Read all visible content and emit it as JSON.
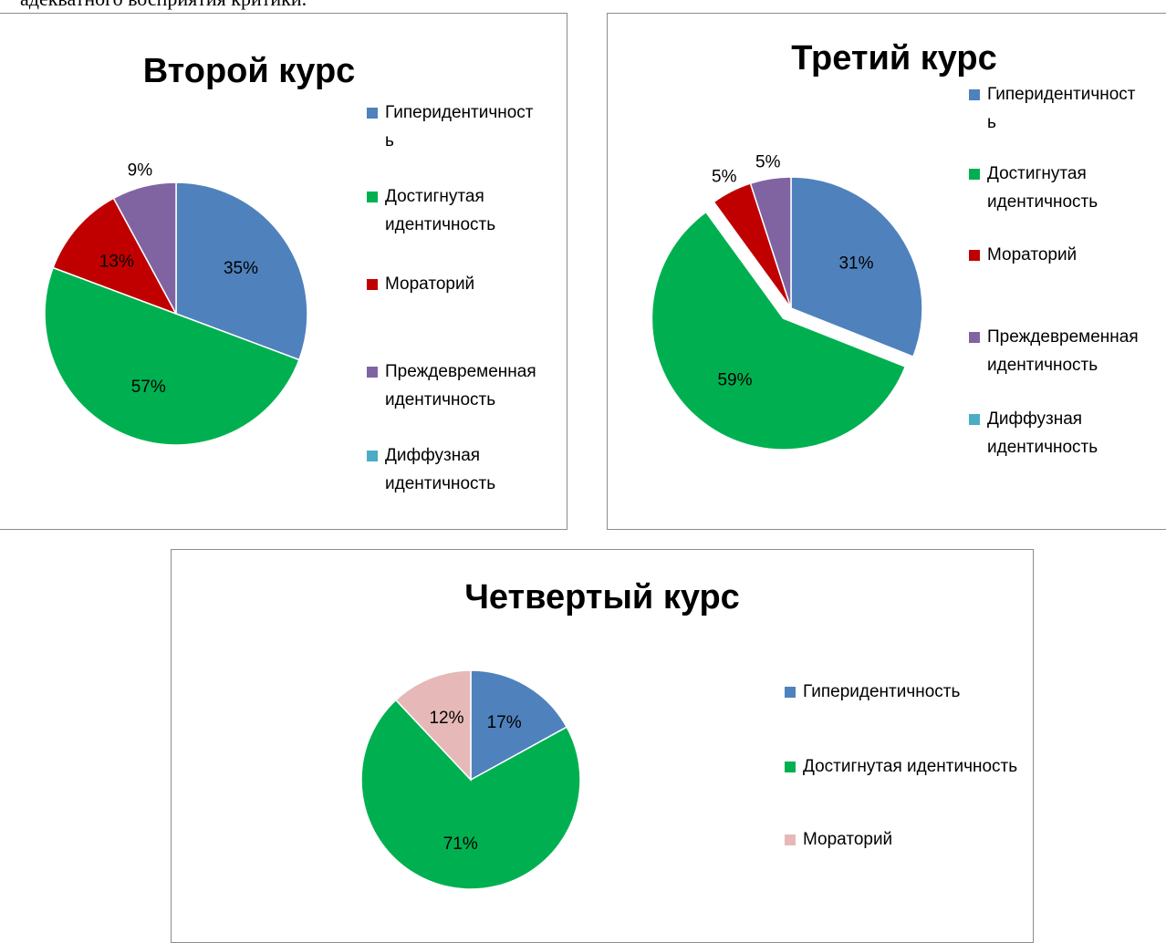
{
  "text_fragment": "адекватного восприятия критики.",
  "chart_data": [
    {
      "type": "pie",
      "title": "Второй курс",
      "categories": [
        "Гиперидентичность",
        "Достигнутая идентичность",
        "Мораторий",
        "Преждевременная идентичность",
        "Диффузная идентичность"
      ],
      "values": [
        35,
        57,
        13,
        9,
        null
      ],
      "value_labels": [
        "35%",
        "57%",
        "13%",
        "9%",
        null
      ],
      "colors": [
        "#4f81bd",
        "#00b050",
        "#c00000",
        "#8064a2",
        "#4bacc6"
      ],
      "legend": "right"
    },
    {
      "type": "pie",
      "title": "Третий курс",
      "categories": [
        "Гиперидентичность",
        "Достигнутая идентичность",
        "Мораторий",
        "Преждевременная идентичность",
        "Диффузная идентичность"
      ],
      "values": [
        31,
        59,
        5,
        5,
        null
      ],
      "value_labels": [
        "31%",
        "59%",
        "5%",
        "5%",
        null
      ],
      "colors": [
        "#4f81bd",
        "#00b050",
        "#c00000",
        "#8064a2",
        "#4bacc6"
      ],
      "exploded": [
        false,
        true,
        false,
        false,
        false
      ],
      "legend": "right"
    },
    {
      "type": "pie",
      "title": "Четвертый курс",
      "categories": [
        "Гиперидентичность",
        "Достигнутая идентичность",
        "Мораторий"
      ],
      "values": [
        17,
        71,
        12
      ],
      "value_labels": [
        "17%",
        "71%",
        "12%"
      ],
      "colors": [
        "#4f81bd",
        "#00b050",
        "#e6b9b8"
      ],
      "legend": "right"
    }
  ]
}
